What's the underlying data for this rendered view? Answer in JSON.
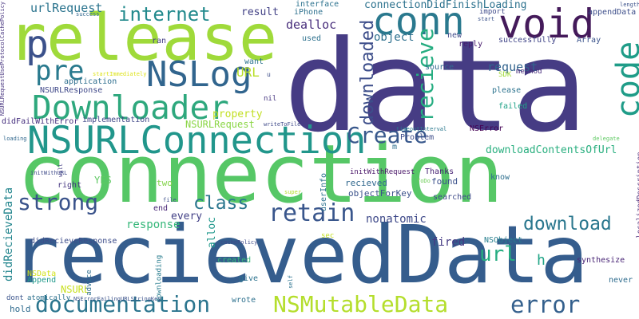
{
  "words": [
    {
      "text": "data",
      "color": "#463c84"
    },
    {
      "text": "connection",
      "color": "#56c766"
    },
    {
      "text": "recievedData",
      "color": "#355d8d"
    },
    {
      "text": "release",
      "color": "#9fda3a"
    },
    {
      "text": "NSURLConnection",
      "color": "#21968b"
    },
    {
      "text": "void",
      "color": "#441a5a"
    },
    {
      "text": "conn",
      "color": "#2a798e"
    },
    {
      "text": "code",
      "color": "#1f9c88"
    },
    {
      "text": "Downloader",
      "color": "#2ea87d"
    },
    {
      "text": "NSLog",
      "color": "#31658e"
    },
    {
      "text": "p",
      "color": "#3b518b"
    },
    {
      "text": "pre",
      "color": "#297a8e"
    },
    {
      "text": "documentation",
      "color": "#2b758e"
    },
    {
      "text": "NSMutableData",
      "color": "#b4de2c"
    },
    {
      "text": "error",
      "color": "#34608d"
    },
    {
      "text": "strong",
      "color": "#3a538b"
    },
    {
      "text": "Create",
      "color": "#38588c"
    },
    {
      "text": "recieve",
      "color": "#26ad81"
    },
    {
      "text": "downloaded",
      "color": "#3d4e8a"
    },
    {
      "text": "internet",
      "color": "#238a8d"
    },
    {
      "text": "download",
      "color": "#2a778e"
    },
    {
      "text": "url",
      "color": "#26ad81"
    },
    {
      "text": "class",
      "color": "#2a768e"
    },
    {
      "text": "retain",
      "color": "#39568c"
    },
    {
      "text": "connectionDidFinishLoading",
      "color": "#2c728e"
    },
    {
      "text": "urlRequest",
      "color": "#2b748e"
    },
    {
      "text": "result",
      "color": "#424186"
    },
    {
      "text": "dealloc",
      "color": "#472d7b"
    },
    {
      "text": "object",
      "color": "#2d708e"
    },
    {
      "text": "request",
      "color": "#32648e"
    },
    {
      "text": "NSURLRequest",
      "color": "#8bd646"
    },
    {
      "text": "property",
      "color": "#c2df23"
    },
    {
      "text": "nonatomic",
      "color": "#3e4989"
    },
    {
      "text": "response",
      "color": "#35b779"
    },
    {
      "text": "didRecieveData",
      "color": "#24868e"
    },
    {
      "text": "didRecieveResponse",
      "color": "#3d4d8a"
    },
    {
      "text": "downloadContentsOfUrl",
      "color": "#29af7f"
    },
    {
      "text": "application",
      "color": "#2e6e8e"
    },
    {
      "text": "NSURLResponse",
      "color": "#3f4889"
    },
    {
      "text": "didFailWithError",
      "color": "#462f7e"
    },
    {
      "text": "implementation",
      "color": "#3f4788"
    },
    {
      "text": "want",
      "color": "#2c738e"
    },
    {
      "text": "nil",
      "color": "#453581"
    },
    {
      "text": "URL",
      "color": "#b8de29"
    },
    {
      "text": "alloc",
      "color": "#1f978b"
    },
    {
      "text": "every",
      "color": "#424086"
    },
    {
      "text": "fired",
      "color": "#443983"
    },
    {
      "text": "h",
      "color": "#20a486"
    },
    {
      "text": "end",
      "color": "#482576"
    },
    {
      "text": "right",
      "color": "#453581"
    },
    {
      "text": "YES",
      "color": "#5ec962"
    },
    {
      "text": "two",
      "color": "#84d44b"
    },
    {
      "text": "found",
      "color": "#3b518b"
    },
    {
      "text": "Thanks",
      "color": "#482374"
    },
    {
      "text": "objectForKey",
      "color": "#3b528b"
    },
    {
      "text": "searched",
      "color": "#3e4a89"
    },
    {
      "text": "recieved",
      "color": "#31688e"
    },
    {
      "text": "userInfo",
      "color": "#2c718e"
    },
    {
      "text": "NSError",
      "color": "#440154"
    },
    {
      "text": "Problem",
      "color": "#3d4d8a"
    },
    {
      "text": "m",
      "color": "#2e6f8e"
    },
    {
      "text": "NSObject",
      "color": "#277f8e"
    },
    {
      "text": "synthesize",
      "color": "#482475"
    },
    {
      "text": "never",
      "color": "#2f6c8e"
    },
    {
      "text": "created",
      "color": "#35b779"
    },
    {
      "text": "give",
      "color": "#2c738e"
    },
    {
      "text": "wrote",
      "color": "#2d708e"
    },
    {
      "text": "hold",
      "color": "#2f6b8e"
    },
    {
      "text": "dont",
      "color": "#3a548c"
    },
    {
      "text": "atomically",
      "color": "#2c718e"
    },
    {
      "text": "NSURL",
      "color": "#c8e020"
    },
    {
      "text": "Append",
      "color": "#1f998a"
    },
    {
      "text": "NSData",
      "color": "#d2e21b"
    },
    {
      "text": "downloading",
      "color": "#287c8e"
    },
    {
      "text": "advice",
      "color": "#2e6d8e"
    },
    {
      "text": "initWithRequest",
      "color": "#481467"
    },
    {
      "text": "initWithURL",
      "color": "#3e4a89"
    },
    {
      "text": "will",
      "color": "#433e85"
    },
    {
      "text": "file",
      "color": "#3c4f8a"
    },
    {
      "text": "super",
      "color": "#b5de2b"
    },
    {
      "text": "ToDo",
      "color": "#6ece58"
    },
    {
      "text": "sec",
      "color": "#c5e021"
    },
    {
      "text": "cachePolicy",
      "color": "#3e4a89"
    },
    {
      "text": "NSErrorFailingURLStringKey",
      "color": "#3b528b"
    },
    {
      "text": "self",
      "color": "#2c728e"
    },
    {
      "text": "timeoutInterval",
      "color": "#2a788e"
    },
    {
      "text": "startImmediately",
      "color": "#dde318"
    },
    {
      "text": "writeToFile",
      "color": "#3e4989"
    },
    {
      "text": "loading",
      "color": "#31688e"
    },
    {
      "text": "delegate",
      "color": "#5ec962"
    },
    {
      "text": "localizedDescription",
      "color": "#482878"
    },
    {
      "text": "NSURLRequestUseProtocolCachePolicy",
      "color": "#46337f"
    },
    {
      "text": "interface",
      "color": "#2c728e"
    },
    {
      "text": "iPhone",
      "color": "#2d708e"
    },
    {
      "text": "success",
      "color": "#31688e"
    },
    {
      "text": "start",
      "color": "#3b528b"
    },
    {
      "text": "import",
      "color": "#3e4a89"
    },
    {
      "text": "length",
      "color": "#3b518b"
    },
    {
      "text": "appendData",
      "color": "#3d4e8a"
    },
    {
      "text": "reply",
      "color": "#481c6e"
    },
    {
      "text": "new",
      "color": "#3e4989"
    },
    {
      "text": "successfully",
      "color": "#404588"
    },
    {
      "text": "Array",
      "color": "#3a538b"
    },
    {
      "text": "source",
      "color": "#31688e"
    },
    {
      "text": "please",
      "color": "#2c738e"
    },
    {
      "text": "failed",
      "color": "#1fa287"
    },
    {
      "text": "method",
      "color": "#472d7b"
    },
    {
      "text": "SDK",
      "color": "#a0da39"
    },
    {
      "text": "used",
      "color": "#2d718e"
    },
    {
      "text": "ran",
      "color": "#433e85"
    },
    {
      "text": "u",
      "color": "#3d4e8a"
    },
    {
      "text": "know",
      "color": "#2e6e8e"
    }
  ]
}
